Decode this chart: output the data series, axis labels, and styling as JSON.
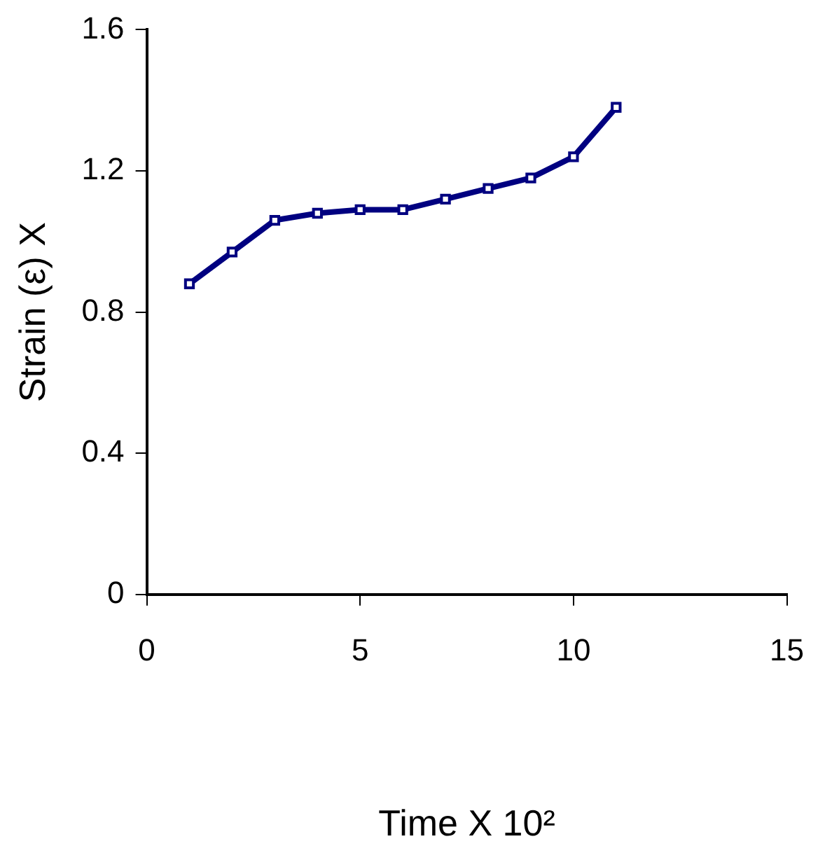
{
  "chart_data": {
    "type": "line",
    "xlabel": "Time X 10²",
    "ylabel": "Strain (ε) X",
    "x": [
      1,
      2,
      3,
      4,
      5,
      6,
      7,
      8,
      9,
      10,
      11
    ],
    "series": [
      {
        "color": "#000080",
        "values": [
          0.88,
          0.97,
          1.06,
          1.08,
          1.09,
          1.09,
          1.12,
          1.15,
          1.18,
          1.24,
          1.38
        ]
      }
    ],
    "xlim": [
      0,
      15
    ],
    "xticks": [
      0,
      5,
      10,
      15
    ],
    "ylim": [
      0,
      1.6
    ],
    "yticks": [
      0,
      0.4,
      0.8,
      1.2,
      1.6
    ],
    "grid": false,
    "legend": false,
    "marker": "square",
    "line_style": "solid"
  }
}
